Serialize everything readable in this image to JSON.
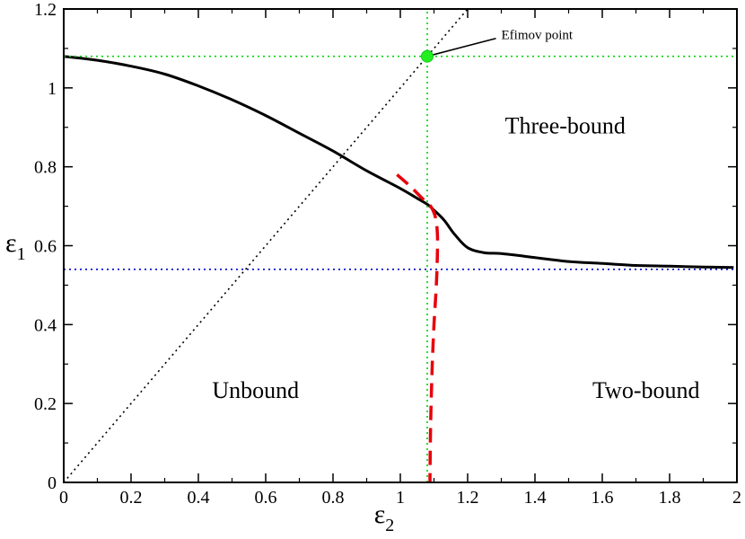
{
  "chart_data": {
    "type": "line",
    "title": "",
    "xlabel": {
      "symbol": "ε",
      "subscript": "2"
    },
    "ylabel": {
      "symbol": "ε",
      "subscript": "1"
    },
    "xlim": [
      0,
      2
    ],
    "ylim": [
      0,
      1.2
    ],
    "xticks": [
      0,
      0.2,
      0.4,
      0.6,
      0.8,
      1,
      1.2,
      1.4,
      1.6,
      1.8,
      2
    ],
    "xtick_labels": [
      "0",
      "0.2",
      "0.4",
      "0.6",
      "0.8",
      "1",
      "1.2",
      "1.4",
      "1.6",
      "1.8",
      "2"
    ],
    "yticks": [
      0,
      0.2,
      0.4,
      0.6,
      0.8,
      1,
      1.2
    ],
    "ytick_labels": [
      "0",
      "0.2",
      "0.4",
      "0.6",
      "0.8",
      "1",
      "1.2"
    ],
    "grid": false,
    "series": [
      {
        "style": "solid",
        "color": "#000000",
        "x": [
          0,
          0.1,
          0.2,
          0.3,
          0.4,
          0.5,
          0.6,
          0.7,
          0.8,
          0.9,
          1.0,
          1.05,
          1.08,
          1.1,
          1.13,
          1.16,
          1.2,
          1.25,
          1.3,
          1.4,
          1.5,
          1.6,
          1.7,
          1.8,
          1.9,
          1.99
        ],
        "y": [
          1.08,
          1.07,
          1.055,
          1.035,
          1.005,
          0.97,
          0.93,
          0.885,
          0.84,
          0.79,
          0.745,
          0.72,
          0.705,
          0.69,
          0.665,
          0.63,
          0.595,
          0.582,
          0.58,
          0.57,
          0.56,
          0.555,
          0.55,
          0.548,
          0.546,
          0.545
        ]
      },
      {
        "style": "dashed",
        "color": "#e8000b",
        "x": [
          0.99,
          1.03,
          1.065,
          1.09,
          1.105,
          1.11,
          1.11,
          1.107,
          1.1,
          1.095,
          1.09,
          1.088
        ],
        "y": [
          0.78,
          0.75,
          0.72,
          0.7,
          0.67,
          0.63,
          0.58,
          0.5,
          0.4,
          0.3,
          0.15,
          0
        ]
      },
      {
        "style": "dotted",
        "color": "#000000",
        "x": [
          0,
          1.2
        ],
        "y": [
          0,
          1.2
        ]
      },
      {
        "style": "dotted",
        "color": "#00d400",
        "x": [
          0,
          2
        ],
        "y": [
          1.08,
          1.08
        ]
      },
      {
        "style": "dotted",
        "color": "#00d400",
        "x": [
          1.08,
          1.08
        ],
        "y": [
          0,
          1.2
        ]
      },
      {
        "style": "dotted",
        "color": "#0000cc",
        "x": [
          0,
          2
        ],
        "y": [
          0.54,
          0.54
        ]
      }
    ],
    "markers": [
      {
        "x": 1.08,
        "y": 1.08,
        "color": "#22ee22"
      }
    ],
    "annotations": [
      {
        "text": "Efimov point",
        "x": 1.3,
        "y": 1.13,
        "arrow_to": [
          1.08,
          1.08
        ]
      }
    ],
    "region_labels": [
      {
        "text": "Three-bound",
        "x": 1.49,
        "y": 0.905
      },
      {
        "text": "Unbound",
        "x": 0.57,
        "y": 0.235
      },
      {
        "text": "Two-bound",
        "x": 1.73,
        "y": 0.235
      }
    ]
  }
}
